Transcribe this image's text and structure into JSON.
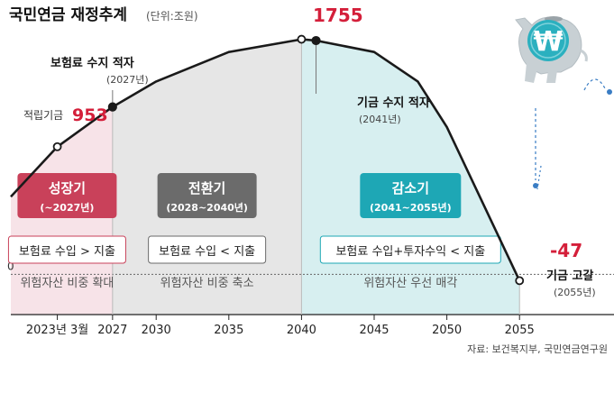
{
  "title": "국민연금 재정추계",
  "unit": "(단위:조원)",
  "source": "자료: 보건복지부, 국민연금연구원",
  "colors": {
    "line": "#1a1a1a",
    "peak_red": "#d41f3a",
    "stage1_bg": "#f7e3e8",
    "stage1_label": "#c9415a",
    "stage2_bg": "#e6e6e6",
    "stage2_label": "#6b6b6b",
    "stage3_bg": "#d7eff0",
    "stage3_label": "#1ea7b5",
    "pig": "#c8d0d4",
    "coin": "#2bb0bf"
  },
  "annotations": {
    "current_label": "적립기금",
    "current_value": "953",
    "peak_value": "1755",
    "deficit_label": "보험료 수지 적자",
    "deficit_year": "(2027년)",
    "fund_deficit_label": "기금 수지 적자",
    "fund_deficit_year": "(2041년)",
    "depletion_value": "-47",
    "depletion_label": "기금 고갈",
    "depletion_year": "(2055년)"
  },
  "stages": [
    {
      "name": "성장기",
      "period": "(~2027년)",
      "balance": "보험료 수입 > 지출",
      "policy": "위험자산 비중 확대"
    },
    {
      "name": "전환기",
      "period": "(2028~2040년)",
      "balance": "보험료 수입 < 지출",
      "policy": "위험자산 비중 축소"
    },
    {
      "name": "감소기",
      "period": "(2041~2055년)",
      "balance": "보험료 수입+투자수익 < 지출",
      "policy": "위험자산 우선 매각"
    }
  ],
  "icon": {
    "coin_symbol": "₩",
    "name": "piggy-bank-icon"
  },
  "chart_data": {
    "type": "line",
    "title": "국민연금 재정추계",
    "ylabel": "조원",
    "zero_label": "0",
    "x_ticks": [
      "2023년 3월",
      "2027",
      "2030",
      "2035",
      "2040",
      "2045",
      "2050",
      "2055"
    ],
    "x_tick_values": [
      2023.2,
      2027,
      2030,
      2035,
      2040,
      2045,
      2050,
      2055
    ],
    "points": [
      {
        "x": 2020.0,
        "y": 580
      },
      {
        "x": 2023.2,
        "y": 953
      },
      {
        "x": 2027.0,
        "y": 1250
      },
      {
        "x": 2030.0,
        "y": 1440
      },
      {
        "x": 2035.0,
        "y": 1660
      },
      {
        "x": 2040.0,
        "y": 1755
      },
      {
        "x": 2041.0,
        "y": 1745
      },
      {
        "x": 2045.0,
        "y": 1660
      },
      {
        "x": 2048.0,
        "y": 1440
      },
      {
        "x": 2050.0,
        "y": 1100
      },
      {
        "x": 2055.0,
        "y": -47
      }
    ],
    "marked_points": [
      {
        "x": 2023.2,
        "y": 953,
        "note": "적립기금"
      },
      {
        "x": 2027.0,
        "y": 1250,
        "note": "보험료 수지 적자"
      },
      {
        "x": 2040.0,
        "y": 1755,
        "note": "peak"
      },
      {
        "x": 2041.0,
        "y": 1745,
        "note": "기금 수지 적자"
      },
      {
        "x": 2055.0,
        "y": -47,
        "note": "기금 고갈"
      }
    ],
    "xlim": [
      2020.0,
      2061.5
    ],
    "ylim": [
      -300,
      1900
    ]
  }
}
